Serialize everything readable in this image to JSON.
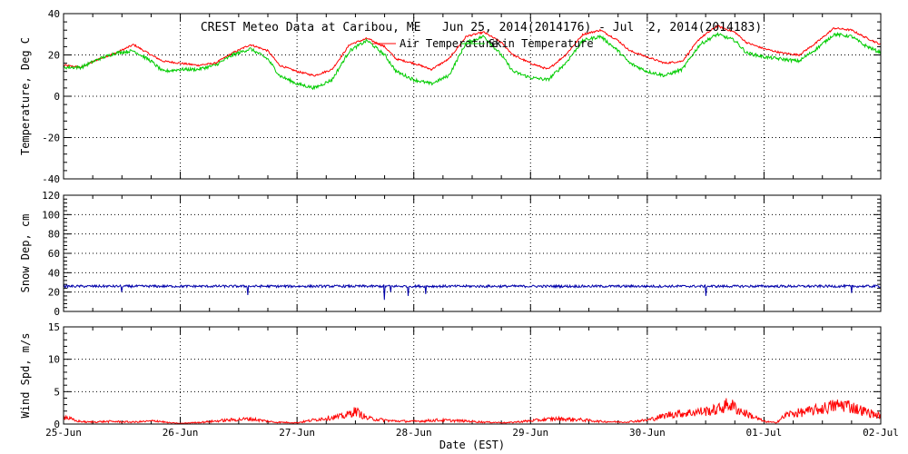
{
  "chart_data": {
    "title": "CREST Meteo Data at Caribou, ME   Jun 25, 2014(2014176) - Jul  2, 2014(2014183)",
    "xlabel": "Date (EST)",
    "x_ticks": [
      "25-Jun",
      "26-Jun",
      "27-Jun",
      "28-Jun",
      "29-Jun",
      "30-Jun",
      "01-Jul",
      "02-Jul"
    ],
    "grid": true,
    "panels": [
      {
        "id": "temperature",
        "type": "line",
        "ylabel": "Temperature, Deg C",
        "ylim": [
          -40,
          40
        ],
        "y_ticks": [
          -40,
          -20,
          0,
          20,
          40
        ],
        "legend": "top-center",
        "series": [
          {
            "name": "Air Temperature",
            "color": "#ff0000",
            "x_days": [
              0,
              0.15,
              0.3,
              0.45,
              0.6,
              0.75,
              0.85,
              1.0,
              1.15,
              1.3,
              1.45,
              1.6,
              1.75,
              1.85,
              2.0,
              2.15,
              2.3,
              2.45,
              2.6,
              2.75,
              2.85,
              3.0,
              3.15,
              3.3,
              3.45,
              3.6,
              3.75,
              3.85,
              4.0,
              4.15,
              4.3,
              4.45,
              4.6,
              4.75,
              4.85,
              5.0,
              5.15,
              5.3,
              5.45,
              5.6,
              5.75,
              5.85,
              6.0,
              6.15,
              6.3,
              6.45,
              6.6,
              6.75,
              6.85,
              7.0
            ],
            "values": [
              15,
              14,
              18,
              21,
              25,
              20,
              17,
              16,
              15,
              16,
              21,
              25,
              22,
              15,
              12,
              10,
              13,
              25,
              28,
              24,
              18,
              16,
              13,
              18,
              29,
              31,
              26,
              20,
              16,
              13,
              20,
              30,
              32,
              27,
              22,
              19,
              16,
              17,
              28,
              34,
              31,
              26,
              23,
              21,
              20,
              26,
              33,
              32,
              29,
              25
            ]
          },
          {
            "name": "Skin Temperature",
            "color": "#00cc00",
            "x_days": [
              0,
              0.15,
              0.3,
              0.45,
              0.6,
              0.75,
              0.85,
              1.0,
              1.15,
              1.3,
              1.45,
              1.6,
              1.75,
              1.85,
              2.0,
              2.15,
              2.3,
              2.45,
              2.6,
              2.75,
              2.85,
              3.0,
              3.15,
              3.3,
              3.45,
              3.6,
              3.75,
              3.85,
              4.0,
              4.15,
              4.3,
              4.45,
              4.6,
              4.75,
              4.85,
              5.0,
              5.15,
              5.3,
              5.45,
              5.6,
              5.75,
              5.85,
              6.0,
              6.15,
              6.3,
              6.45,
              6.6,
              6.75,
              6.85,
              7.0
            ],
            "values": [
              14,
              14,
              18,
              21,
              22,
              17,
              12,
              13,
              13,
              15,
              20,
              23,
              18,
              10,
              6,
              4,
              8,
              22,
              27,
              20,
              12,
              8,
              6,
              10,
              26,
              29,
              20,
              12,
              9,
              8,
              16,
              27,
              29,
              22,
              16,
              12,
              10,
              13,
              25,
              30,
              27,
              21,
              19,
              18,
              17,
              23,
              30,
              29,
              25,
              21
            ]
          }
        ]
      },
      {
        "id": "snow-depth",
        "type": "line",
        "ylabel": "Snow Dep, cm",
        "ylim": [
          0,
          120
        ],
        "y_ticks": [
          0,
          20,
          40,
          60,
          80,
          100,
          120
        ],
        "series": [
          {
            "name": "",
            "color": "#0000aa",
            "base_value": 26,
            "dips": [
              [
                0.5,
                20
              ],
              [
                1.58,
                17
              ],
              [
                2.75,
                12
              ],
              [
                2.8,
                20
              ],
              [
                2.95,
                16
              ],
              [
                3.1,
                18
              ],
              [
                5.5,
                16
              ],
              [
                6.75,
                19
              ]
            ]
          }
        ]
      },
      {
        "id": "wind-speed",
        "type": "line",
        "ylabel": "Wind Spd, m/s",
        "ylim": [
          0,
          15
        ],
        "y_ticks": [
          0,
          5,
          10,
          15
        ],
        "series": [
          {
            "name": "",
            "color": "#ff0000",
            "x_days": [
              0,
              0.1,
              0.2,
              0.4,
              0.6,
              0.8,
              0.9,
              1.0,
              1.2,
              1.4,
              1.6,
              1.8,
              2.0,
              2.2,
              2.4,
              2.5,
              2.6,
              2.8,
              3.0,
              3.2,
              3.4,
              3.6,
              3.8,
              4.0,
              4.2,
              4.4,
              4.6,
              4.8,
              5.0,
              5.2,
              5.4,
              5.6,
              5.7,
              5.8,
              6.0,
              6.1,
              6.2,
              6.4,
              6.6,
              6.7,
              6.8,
              7.0
            ],
            "values": [
              1.2,
              0.5,
              0.3,
              0.4,
              0.3,
              0.5,
              0.2,
              0.1,
              0.3,
              0.6,
              0.8,
              0.3,
              0.2,
              0.8,
              1.2,
              2.0,
              0.9,
              0.5,
              0.4,
              0.6,
              0.5,
              0.3,
              0.2,
              0.5,
              0.8,
              0.7,
              0.4,
              0.3,
              0.6,
              1.5,
              1.8,
              2.2,
              3.1,
              2.0,
              0.4,
              0.2,
              1.5,
              2.0,
              2.8,
              3.0,
              2.3,
              1.2
            ]
          }
        ]
      }
    ]
  }
}
